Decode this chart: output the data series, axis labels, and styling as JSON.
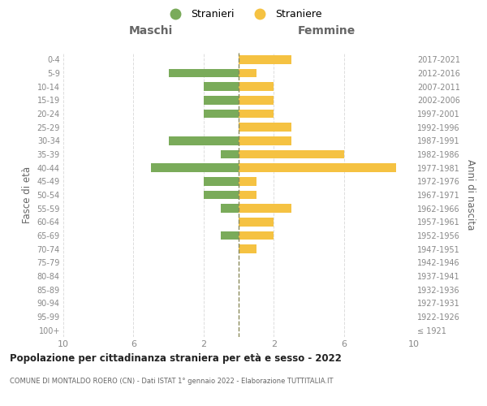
{
  "age_groups": [
    "100+",
    "95-99",
    "90-94",
    "85-89",
    "80-84",
    "75-79",
    "70-74",
    "65-69",
    "60-64",
    "55-59",
    "50-54",
    "45-49",
    "40-44",
    "35-39",
    "30-34",
    "25-29",
    "20-24",
    "15-19",
    "10-14",
    "5-9",
    "0-4"
  ],
  "birth_years": [
    "≤ 1921",
    "1922-1926",
    "1927-1931",
    "1932-1936",
    "1937-1941",
    "1942-1946",
    "1947-1951",
    "1952-1956",
    "1957-1961",
    "1962-1966",
    "1967-1971",
    "1972-1976",
    "1977-1981",
    "1982-1986",
    "1987-1991",
    "1992-1996",
    "1997-2001",
    "2002-2006",
    "2007-2011",
    "2012-2016",
    "2017-2021"
  ],
  "maschi": [
    0,
    0,
    0,
    0,
    0,
    0,
    0,
    1,
    0,
    1,
    2,
    2,
    5,
    1,
    4,
    0,
    2,
    2,
    2,
    4,
    0
  ],
  "femmine": [
    0,
    0,
    0,
    0,
    0,
    0,
    1,
    2,
    2,
    3,
    1,
    1,
    9,
    6,
    3,
    3,
    2,
    2,
    2,
    1,
    3
  ],
  "color_maschi": "#7aab5a",
  "color_femmine": "#f5c242",
  "title_main": "Popolazione per cittadinanza straniera per età e sesso - 2022",
  "subtitle": "COMUNE DI MONTALDO ROERO (CN) - Dati ISTAT 1° gennaio 2022 - Elaborazione TUTTITALIA.IT",
  "label_maschi": "Stranieri",
  "label_femmine": "Straniere",
  "header_left": "Maschi",
  "header_right": "Femmine",
  "ylabel_left": "Fasce di età",
  "ylabel_right": "Anni di nascita",
  "xlim": 10,
  "xticks": [
    10,
    6,
    2,
    2,
    6,
    10
  ],
  "grid_color": "#dddddd",
  "background_color": "#ffffff",
  "center_line_color": "#8a8a5a",
  "text_color": "#888888",
  "header_color": "#666666",
  "title_color": "#222222",
  "subtitle_color": "#666666"
}
